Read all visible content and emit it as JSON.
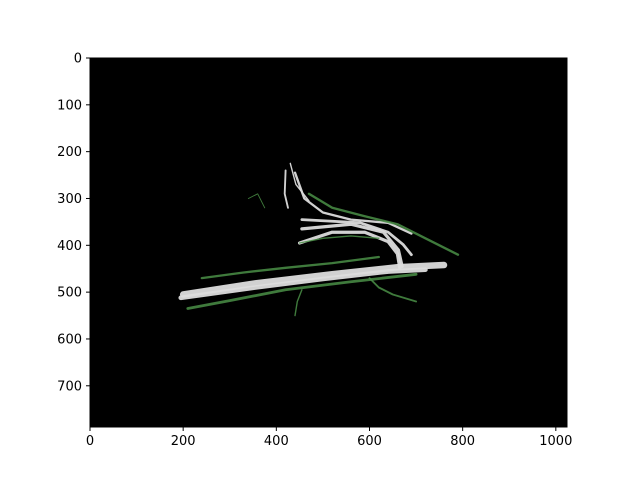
{
  "chart_data": {
    "type": "heatmap",
    "title": "",
    "xlabel": "",
    "ylabel": "",
    "xlim": [
      0,
      1024
    ],
    "ylim": [
      788,
      0
    ],
    "xticks": [
      0,
      200,
      400,
      600,
      800,
      1000
    ],
    "yticks": [
      0,
      100,
      200,
      300,
      400,
      500,
      600,
      700
    ],
    "grid": false,
    "colors": {
      "background": "#000000",
      "road": "#dcdcdc",
      "vegetation": "#4a8f47",
      "axes": "#000000"
    },
    "features": [
      {
        "class": "road",
        "kind": "polyline",
        "width": 14,
        "points": [
          [
            200,
            505
          ],
          [
            350,
            482
          ],
          [
            520,
            462
          ],
          [
            660,
            447
          ],
          [
            760,
            442
          ]
        ]
      },
      {
        "class": "road",
        "kind": "polyline",
        "width": 10,
        "points": [
          [
            195,
            512
          ],
          [
            340,
            492
          ],
          [
            500,
            472
          ],
          [
            640,
            456
          ],
          [
            720,
            452
          ]
        ]
      },
      {
        "class": "road",
        "kind": "polyline",
        "width": 7,
        "points": [
          [
            450,
            395
          ],
          [
            520,
            372
          ],
          [
            590,
            372
          ],
          [
            640,
            392
          ],
          [
            660,
            418
          ],
          [
            665,
            448
          ]
        ]
      },
      {
        "class": "road",
        "kind": "polyline",
        "width": 7,
        "points": [
          [
            455,
            365
          ],
          [
            560,
            355
          ],
          [
            630,
            372
          ],
          [
            662,
            410
          ],
          [
            670,
            445
          ]
        ]
      },
      {
        "class": "road",
        "kind": "polyline",
        "width": 6,
        "points": [
          [
            455,
            345
          ],
          [
            510,
            348
          ],
          [
            580,
            352
          ],
          [
            640,
            372
          ],
          [
            672,
            398
          ],
          [
            690,
            420
          ]
        ]
      },
      {
        "class": "road",
        "kind": "polyline",
        "width": 5,
        "points": [
          [
            440,
            245
          ],
          [
            460,
            300
          ],
          [
            500,
            330
          ],
          [
            560,
            345
          ],
          [
            640,
            352
          ],
          [
            690,
            375
          ]
        ]
      },
      {
        "class": "road",
        "kind": "polyline",
        "width": 3,
        "points": [
          [
            430,
            225
          ],
          [
            442,
            270
          ],
          [
            470,
            305
          ]
        ]
      },
      {
        "class": "road",
        "kind": "polyline",
        "width": 4,
        "points": [
          [
            420,
            240
          ],
          [
            418,
            290
          ],
          [
            425,
            320
          ]
        ]
      },
      {
        "class": "vegetation",
        "kind": "polyline",
        "width": 5,
        "points": [
          [
            470,
            290
          ],
          [
            520,
            320
          ],
          [
            590,
            338
          ],
          [
            660,
            355
          ],
          [
            720,
            385
          ],
          [
            790,
            420
          ]
        ]
      },
      {
        "class": "vegetation",
        "kind": "polyline",
        "width": 6,
        "points": [
          [
            210,
            535
          ],
          [
            300,
            518
          ],
          [
            420,
            495
          ],
          [
            560,
            478
          ],
          [
            700,
            462
          ]
        ]
      },
      {
        "class": "vegetation",
        "kind": "polyline",
        "width": 5,
        "points": [
          [
            240,
            470
          ],
          [
            330,
            458
          ],
          [
            420,
            448
          ],
          [
            520,
            438
          ],
          [
            620,
            425
          ]
        ]
      },
      {
        "class": "vegetation",
        "kind": "polyline",
        "width": 3,
        "points": [
          [
            450,
            395
          ],
          [
            500,
            385
          ],
          [
            560,
            380
          ],
          [
            620,
            385
          ]
        ]
      },
      {
        "class": "vegetation",
        "kind": "polyline",
        "width": 4,
        "points": [
          [
            600,
            470
          ],
          [
            620,
            490
          ],
          [
            650,
            505
          ],
          [
            700,
            520
          ]
        ]
      },
      {
        "class": "vegetation",
        "kind": "polyline",
        "width": 3,
        "points": [
          [
            440,
            550
          ],
          [
            445,
            520
          ],
          [
            455,
            495
          ]
        ]
      },
      {
        "class": "vegetation",
        "kind": "polyline",
        "width": 2,
        "points": [
          [
            340,
            300
          ],
          [
            360,
            290
          ],
          [
            375,
            320
          ]
        ]
      }
    ]
  }
}
